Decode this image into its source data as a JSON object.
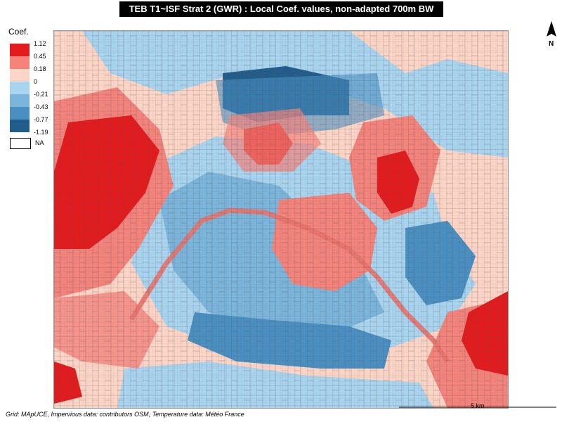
{
  "title": "TEB T1~ISF Strat 2 (GWR) : Local Coef. values, non-adapted 700m BW",
  "legend": {
    "title": "Coef.",
    "breaks": [
      "1.12",
      "0.45",
      "0.18",
      "0",
      "-0.21",
      "-0.43",
      "-0.77",
      "-1.19"
    ],
    "classes": [
      {
        "color": "#e41a1c"
      },
      {
        "color": "#f4837c"
      },
      {
        "color": "#fdd5c6"
      },
      {
        "color": "#a9d4ef"
      },
      {
        "color": "#7bb5db"
      },
      {
        "color": "#4a8fc1"
      },
      {
        "color": "#225c8c"
      }
    ],
    "na": {
      "label": "NA",
      "color": "#ffffff"
    }
  },
  "north_label": "N",
  "scale_label": "5 km",
  "credits": "Grid: MApUCE, Impervious data: contributors OSM, Temperature data: Météo France"
}
